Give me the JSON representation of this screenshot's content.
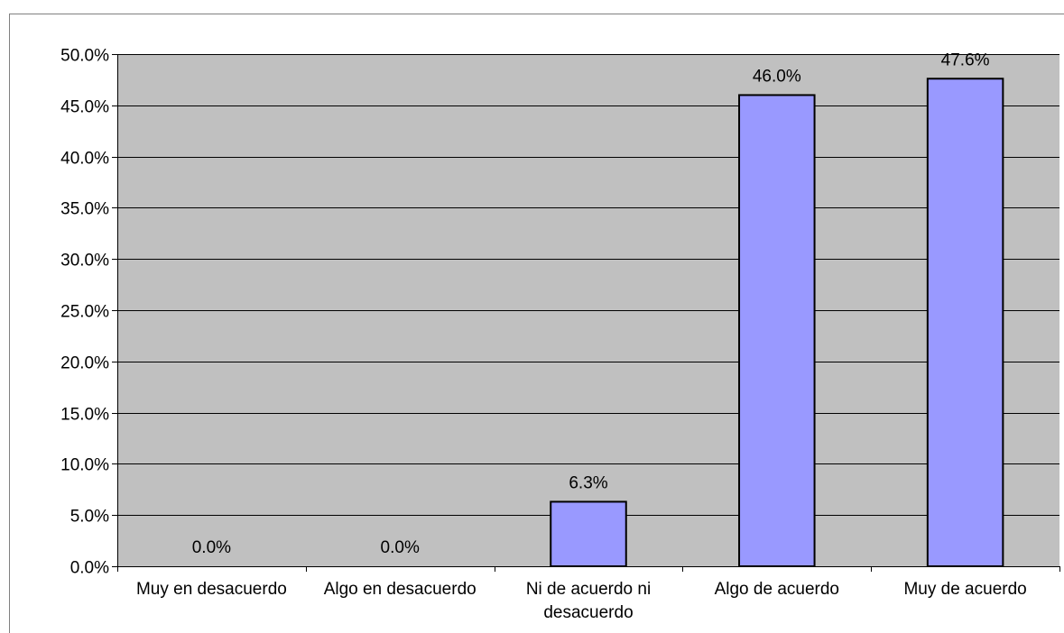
{
  "chart_data": {
    "type": "bar",
    "title": "",
    "xlabel": "",
    "ylabel": "",
    "categories": [
      [
        "Muy en desacuerdo"
      ],
      [
        "Algo en desacuerdo"
      ],
      [
        "Ni de acuerdo ni",
        "desacuerdo"
      ],
      [
        "Algo de acuerdo"
      ],
      [
        "Muy de acuerdo"
      ]
    ],
    "values": [
      0.0,
      0.0,
      6.3,
      46.0,
      47.6
    ],
    "data_labels": [
      "0.0%",
      "0.0%",
      "6.3%",
      "46.0%",
      "47.6%"
    ],
    "ylim": [
      0,
      50
    ],
    "yticks": [
      0,
      5,
      10,
      15,
      20,
      25,
      30,
      35,
      40,
      45,
      50
    ],
    "ytick_labels": [
      "0.0%",
      "5.0%",
      "10.0%",
      "15.0%",
      "20.0%",
      "25.0%",
      "30.0%",
      "35.0%",
      "40.0%",
      "45.0%",
      "50.0%"
    ],
    "grid": true,
    "legend": "none",
    "colors": {
      "plot_background": "#c0c0c0",
      "bar_fill": "#9999ff",
      "bar_stroke": "#000000",
      "gridline": "#000000"
    }
  }
}
